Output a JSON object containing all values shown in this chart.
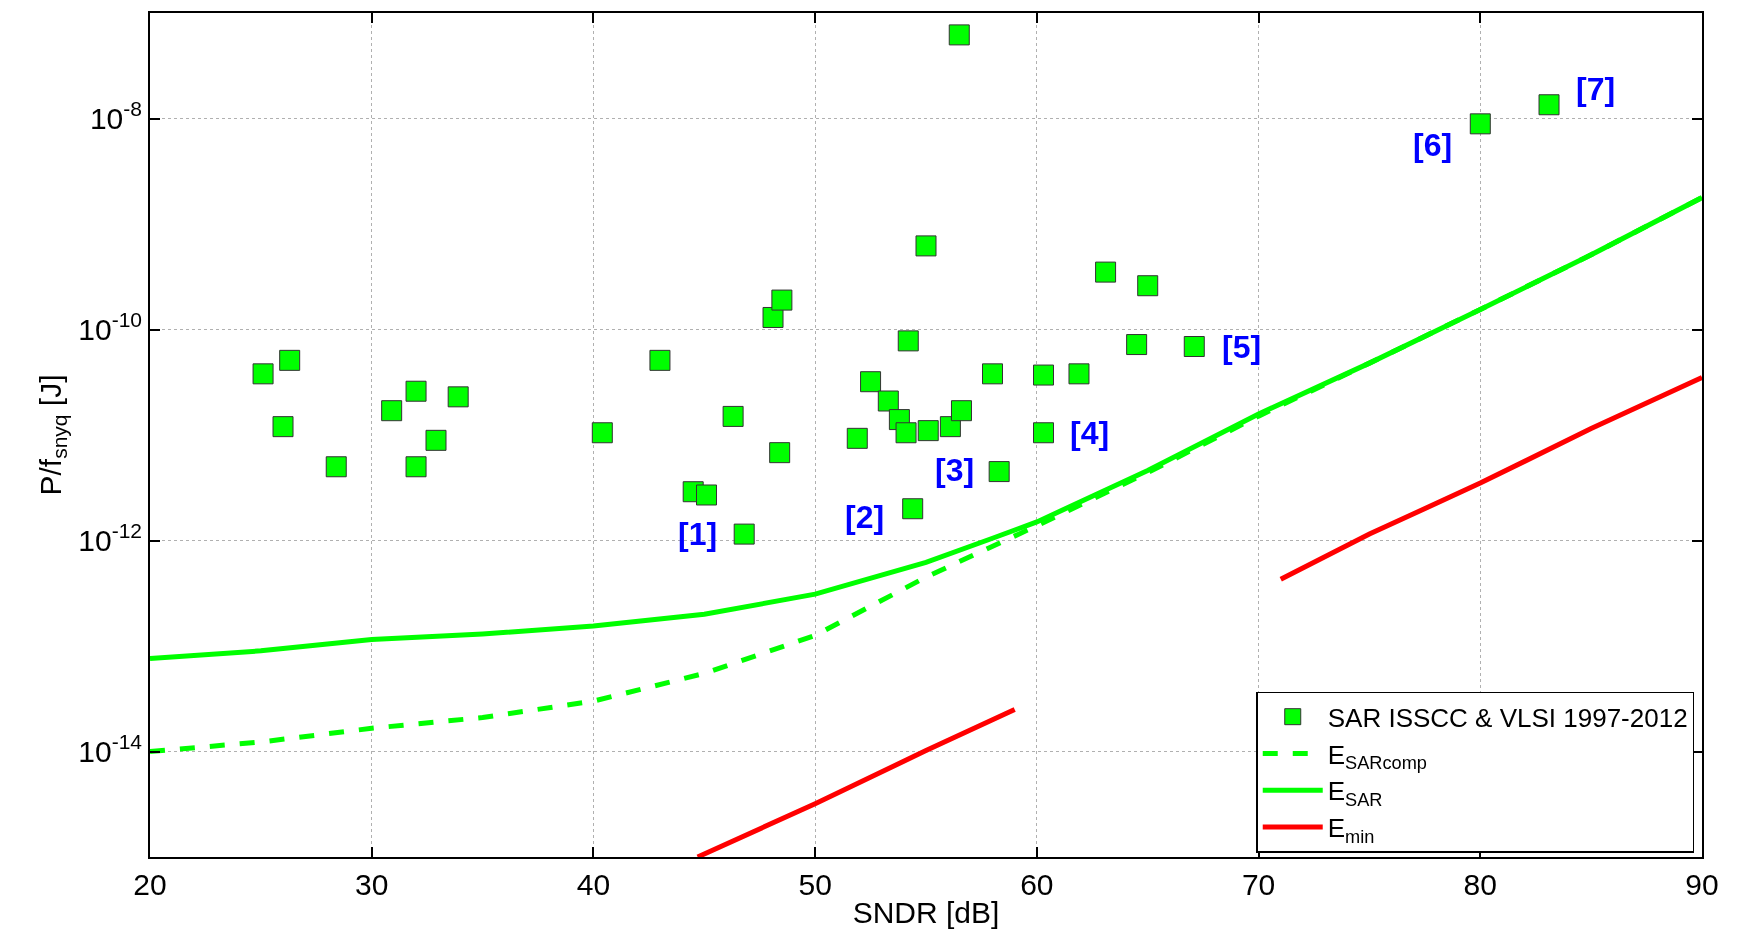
{
  "chart_data": {
    "type": "scatter",
    "xlabel": "SNDR [dB]",
    "ylabel": "P/f$_{snyq}$ [J]",
    "xlim": [
      20,
      90
    ],
    "xticks": [
      20,
      30,
      40,
      50,
      60,
      70,
      80,
      90
    ],
    "ylim": [
      1e-15,
      1e-07
    ],
    "yticks": [
      {
        "value": 1e-14,
        "label": "10$^{-14}$"
      },
      {
        "value": 1e-12,
        "label": "10$^{-12}$"
      },
      {
        "value": 1e-10,
        "label": "10$^{-10}$"
      },
      {
        "value": 1e-08,
        "label": "10$^{-8}$"
      }
    ],
    "log": "y",
    "grid": true,
    "legend": "bottom right",
    "series": [
      {
        "name": "SAR ISSCC & VLSI 1997-2012",
        "marker": "square",
        "color": "#00ff00",
        "x": [
          25.1,
          26.3,
          26.0,
          28.4,
          30.9,
          32.0,
          32.0,
          32.9,
          33.9,
          40.4,
          43.0,
          44.5,
          45.1,
          46.3,
          46.8,
          48.1,
          48.5,
          48.4,
          51.9,
          52.5,
          53.3,
          53.8,
          54.2,
          54.1,
          54.4,
          55.1,
          55.0,
          56.1,
          56.5,
          56.6,
          58.0,
          58.3,
          60.3,
          60.3,
          61.9,
          63.1,
          64.5,
          65.0,
          67.1,
          80.0,
          83.1
        ],
        "values": [
          3.8e-11,
          5.1e-11,
          1.2e-11,
          5e-12,
          1.7e-11,
          2.6e-11,
          5e-12,
          8.9e-12,
          2.3e-11,
          1.05e-11,
          5.1e-11,
          2.9e-12,
          2.7e-12,
          1.5e-11,
          1.15e-12,
          1.3e-10,
          1.9e-10,
          6.8e-12,
          9.3e-12,
          3.2e-11,
          2.1e-11,
          1.4e-11,
          7.8e-11,
          1.05e-11,
          2e-12,
          1.1e-11,
          6.2e-10,
          1.2e-11,
          6.2e-08,
          1.7e-11,
          3.8e-11,
          4.5e-12,
          3.7e-11,
          1.05e-11,
          3.8e-11,
          3.5e-10,
          7.2e-11,
          2.6e-10,
          6.9e-11,
          8.9e-09,
          1.35e-08
        ]
      },
      {
        "name": "E$_{SARcomp}$",
        "type": "line",
        "line_style": "dashed",
        "color": "#00ff00",
        "x": [
          20,
          25,
          30,
          35,
          40,
          45,
          50,
          55,
          60,
          65,
          70,
          75,
          80,
          85,
          90
        ],
        "values": [
          1e-14,
          1.23e-14,
          1.66e-14,
          2.1e-14,
          3e-14,
          5.5e-14,
          1.26e-13,
          4.5e-13,
          1.38e-12,
          4.4e-12,
          1.51e-11,
          4.8e-11,
          1.55e-10,
          5.1e-10,
          1.78e-09
        ]
      },
      {
        "name": "E$_{SAR}$",
        "type": "line",
        "line_style": "solid",
        "color": "#00ff00",
        "x": [
          20,
          25,
          30,
          35,
          40,
          45,
          50,
          55,
          58,
          60,
          65,
          70,
          75,
          80,
          85,
          90
        ],
        "values": [
          7.6e-14,
          9e-14,
          1.15e-13,
          1.3e-13,
          1.55e-13,
          2e-13,
          3.1e-13,
          6.2e-13,
          1.05e-12,
          1.5e-12,
          4.6e-12,
          1.58e-11,
          4.8e-11,
          1.55e-10,
          5.1e-10,
          1.78e-09
        ]
      },
      {
        "name": "E$_{min}$",
        "type": "line",
        "line_style": "solid",
        "color": "#ff0000",
        "x": [
          44.7,
          50,
          55,
          59,
          65,
          71,
          75,
          80,
          85,
          90
        ],
        "values": [
          1e-15,
          3.2e-15,
          1.02e-14,
          2.5e-14,
          null,
          4.3e-13,
          1.15e-12,
          3.5e-12,
          1.15e-11,
          3.5e-11
        ]
      }
    ],
    "annotations": [
      {
        "text": "[1]",
        "x": 46.8,
        "y": 1.15e-12
      },
      {
        "text": "[2]",
        "x": 54.4,
        "y": 2e-12
      },
      {
        "text": "[3]",
        "x": 58.3,
        "y": 4.5e-12
      },
      {
        "text": "[4]",
        "x": 60.3,
        "y": 1.05e-11
      },
      {
        "text": "[5]",
        "x": 67.1,
        "y": 6.9e-11
      },
      {
        "text": "[6]",
        "x": 80.0,
        "y": 8.9e-09
      },
      {
        "text": "[7]",
        "x": 83.1,
        "y": 1.35e-08
      }
    ]
  }
}
